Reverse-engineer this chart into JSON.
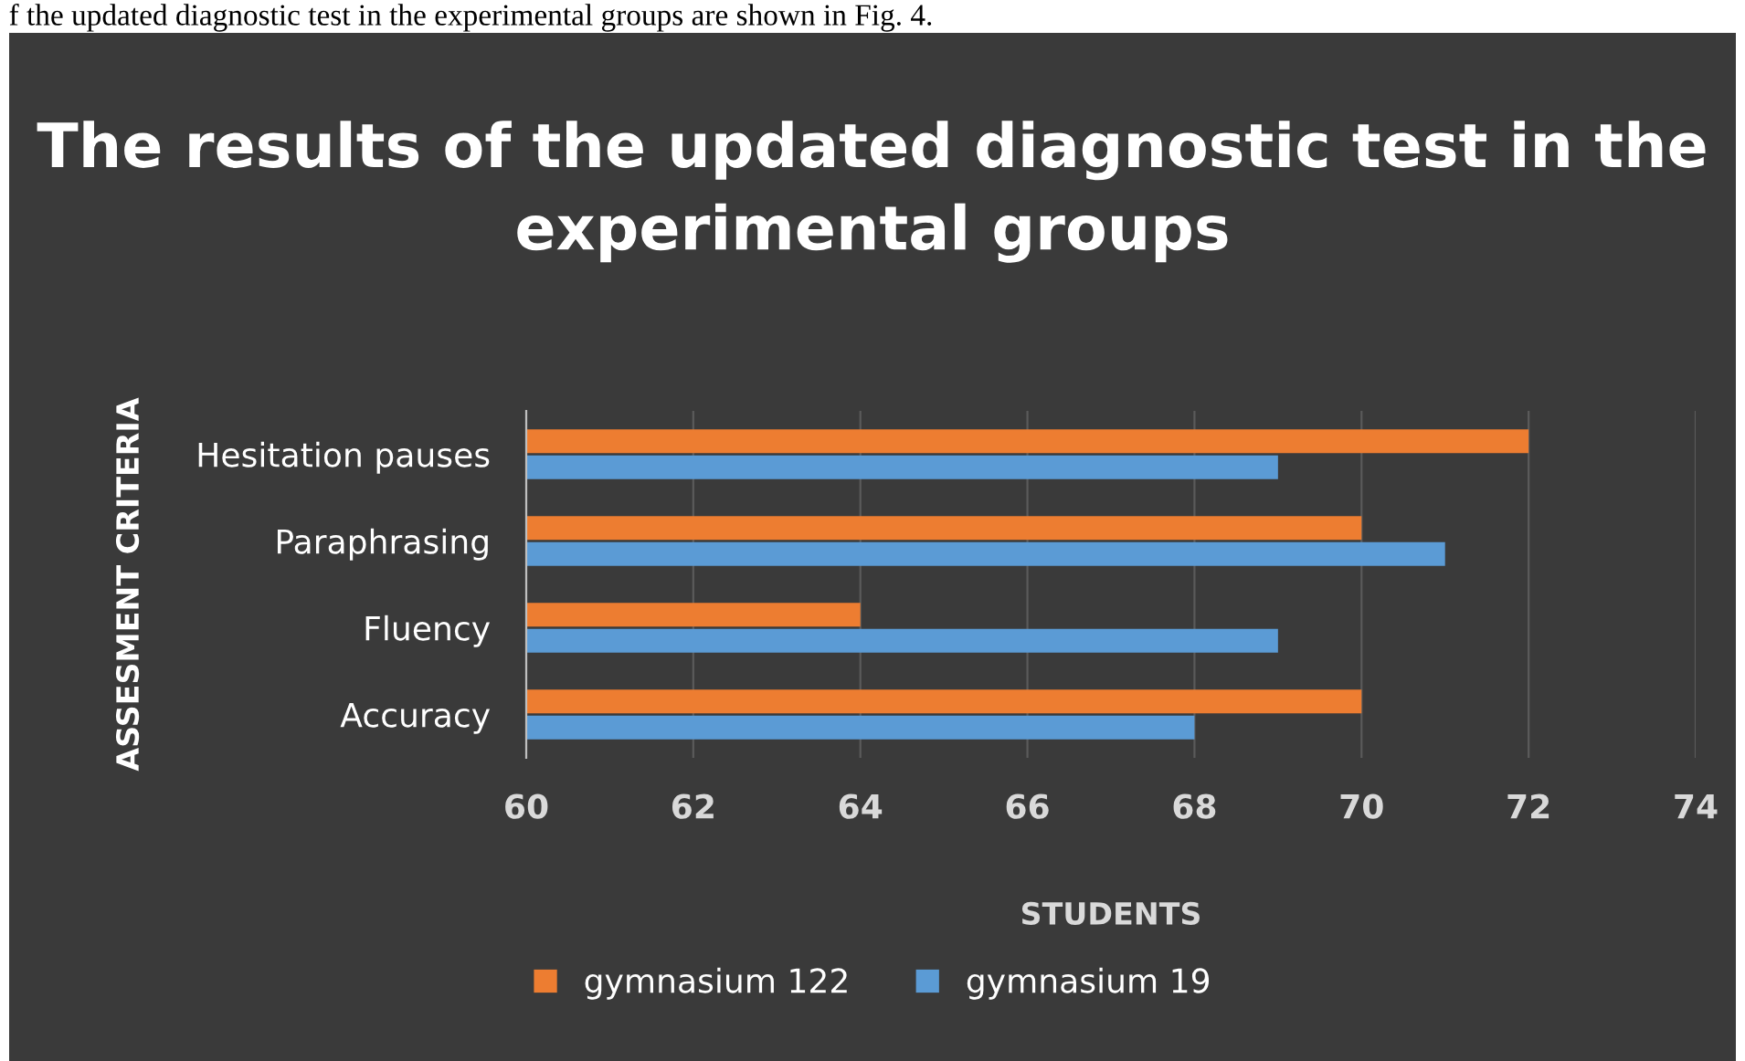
{
  "chart_data": {
    "type": "bar",
    "orientation": "horizontal",
    "title": "The results of the updated diagnostic test in the experimental groups",
    "xlabel": "STUDENTS",
    "ylabel": "ASSESMENT CRITERIA",
    "annotations": [
      "f the updated diagnostic test in the experimental groups are shown in Fig. 4."
    ],
    "categories": [
      "Hesitation pauses",
      "Paraphrasing",
      "Fluency",
      "Accuracy"
    ],
    "series": [
      {
        "name": "gymnasium 122",
        "color": "#ed7d31",
        "values": [
          72,
          70,
          64,
          70
        ]
      },
      {
        "name": "gymnasium 19",
        "color": "#5b9bd5",
        "values": [
          69,
          71,
          69,
          68
        ]
      }
    ],
    "xlim": [
      60,
      74
    ],
    "xticks": [
      60,
      62,
      64,
      66,
      68,
      70,
      72,
      74
    ],
    "grid": "x",
    "legend": "bottom"
  }
}
